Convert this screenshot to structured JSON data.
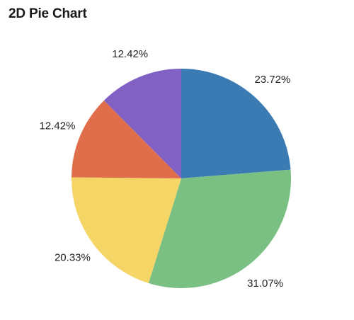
{
  "chart_data": {
    "type": "pie",
    "title": "2D Pie Chart",
    "start_angle_deg": 0,
    "direction": "clockwise",
    "legend": "none",
    "slices": [
      {
        "label": "23.72%",
        "value": 23.72,
        "color": "#3b7bb4"
      },
      {
        "label": "31.07%",
        "value": 31.07,
        "color": "#7bc083"
      },
      {
        "label": "20.33%",
        "value": 20.33,
        "color": "#f5d566"
      },
      {
        "label": "12.42%",
        "value": 12.42,
        "color": "#e06e4a"
      },
      {
        "label": "12.42%",
        "value": 12.42,
        "color": "#8161c4"
      }
    ]
  }
}
